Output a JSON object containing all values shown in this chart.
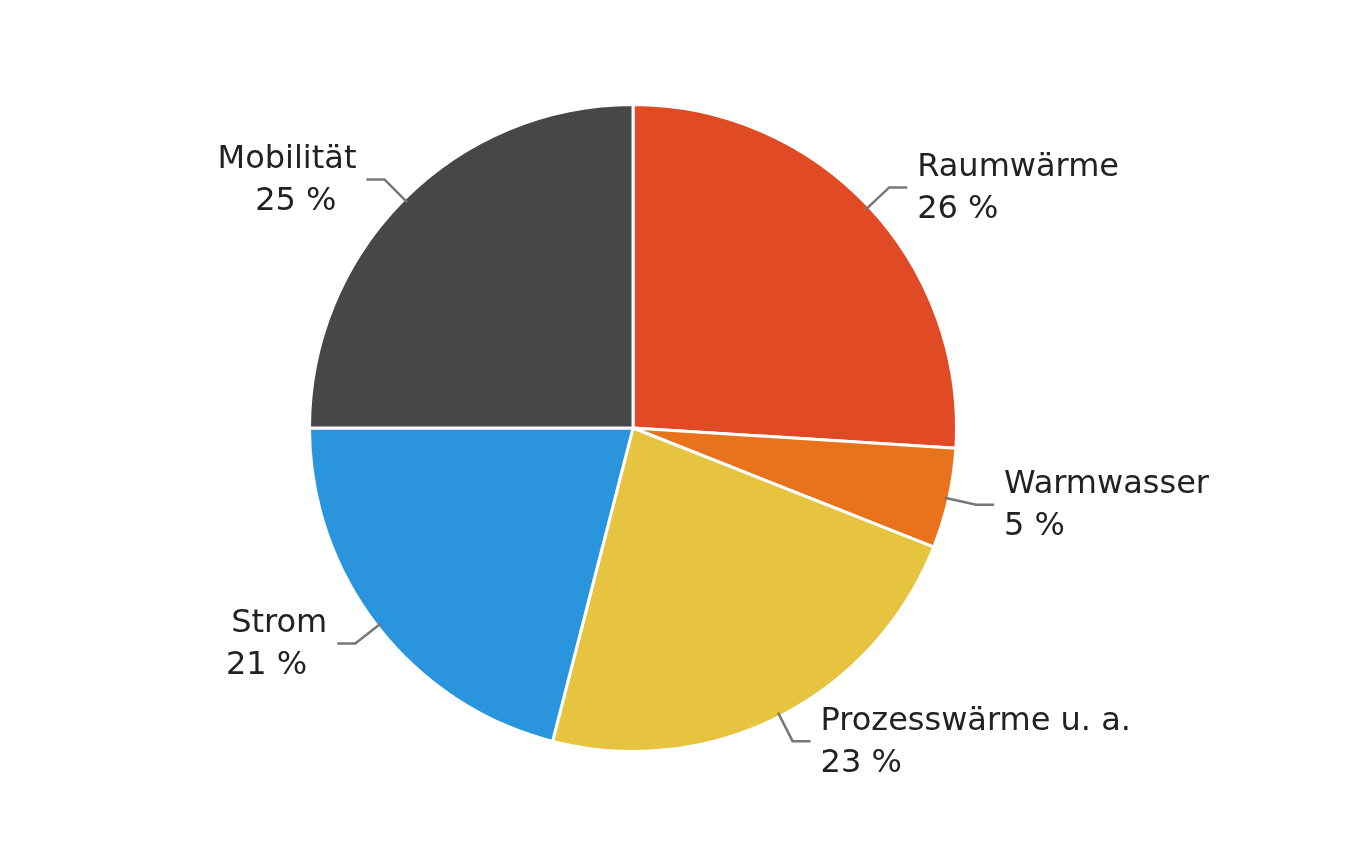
{
  "chart_data": {
    "type": "pie",
    "categories": [
      "Raumwärme",
      "Warmwasser",
      "Prozesswärme u. a.",
      "Strom",
      "Mobilität"
    ],
    "values": [
      26,
      5,
      23,
      21,
      25
    ],
    "value_labels": [
      "26 %",
      "5 %",
      "23 %",
      "21 %",
      "25 %"
    ],
    "colors": [
      "#e04a25",
      "#e8731c",
      "#e6c440",
      "#2a95dc",
      "#474747"
    ],
    "legend": false
  }
}
